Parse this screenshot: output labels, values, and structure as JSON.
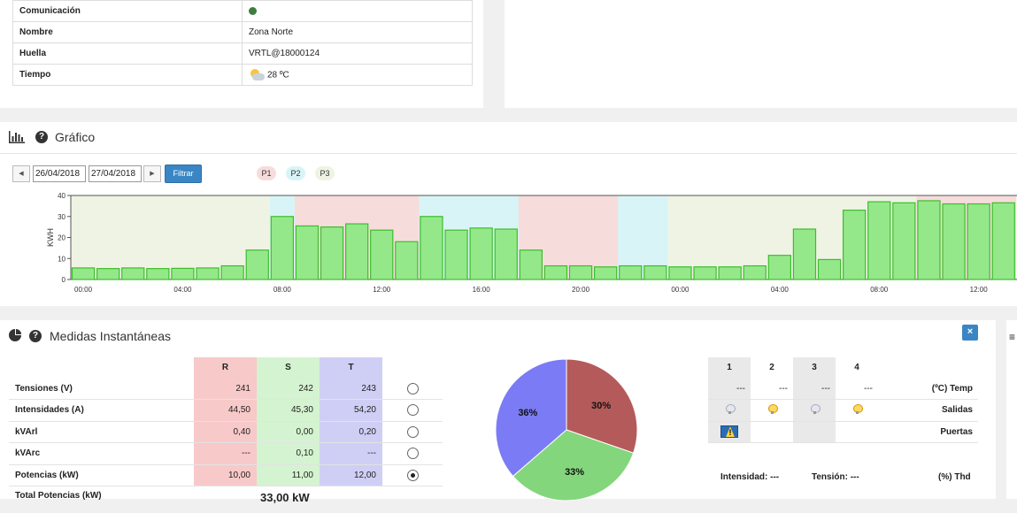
{
  "info": {
    "rows": [
      {
        "label": "Comunicación",
        "value": ""
      },
      {
        "label": "Nombre",
        "value": "Zona Norte"
      },
      {
        "label": "Huella",
        "value": "VRTL@18000124"
      },
      {
        "label": "Tiempo",
        "value": "28 ºC"
      }
    ],
    "status_color": "#3e7d3e"
  },
  "chart_section": {
    "title": "Gráfico",
    "date_from": "26/04/2018",
    "date_to": "27/04/2018",
    "filter_label": "Filtrar",
    "periods": [
      {
        "label": "P1",
        "color": "#f7dcdc"
      },
      {
        "label": "P2",
        "color": "#d9f4f6"
      },
      {
        "label": "P3",
        "color": "#eef3e4"
      }
    ]
  },
  "chart_data": {
    "type": "bar",
    "ylabel": "KWH",
    "ylim": [
      0,
      40
    ],
    "yticks": [
      0,
      10,
      20,
      30,
      40
    ],
    "xtick_labels": [
      "00:00",
      "04:00",
      "08:00",
      "12:00",
      "16:00",
      "20:00",
      "00:00",
      "04:00",
      "08:00",
      "12:00"
    ],
    "hours": [
      0,
      1,
      2,
      3,
      4,
      5,
      6,
      7,
      8,
      9,
      10,
      11,
      12,
      13,
      14,
      15,
      16,
      17,
      18,
      19,
      20,
      21,
      22,
      23,
      0,
      1,
      2,
      3,
      4,
      5,
      6,
      7,
      8,
      9,
      10,
      11,
      12,
      13
    ],
    "values": [
      5.5,
      5.2,
      5.5,
      5.2,
      5.3,
      5.5,
      6.5,
      14,
      30,
      25.5,
      25,
      26.5,
      23.5,
      18,
      30,
      23.5,
      24.5,
      24,
      14,
      6.5,
      6.5,
      6,
      6.5,
      6.5,
      6,
      6,
      6,
      6.5,
      11.5,
      24,
      9.5,
      33,
      37,
      36.5,
      37.5,
      36,
      36,
      36.5
    ],
    "period_by_bar": [
      "P3",
      "P3",
      "P3",
      "P3",
      "P3",
      "P3",
      "P3",
      "P3",
      "P2",
      "P1",
      "P1",
      "P1",
      "P1",
      "P1",
      "P2",
      "P2",
      "P2",
      "P2",
      "P1",
      "P1",
      "P1",
      "P1",
      "P2",
      "P2",
      "P3",
      "P3",
      "P3",
      "P3",
      "P3",
      "P3",
      "P3",
      "P3",
      "P3",
      "P3",
      "P1",
      "P1",
      "P1",
      "P1"
    ],
    "bar_color": "#94e88a",
    "bar_edge": "#3dbe2c"
  },
  "medidas": {
    "title": "Medidas Instantáneas",
    "close_label": "×",
    "phases": [
      "R",
      "S",
      "T"
    ],
    "rows": [
      {
        "label": "Tensiones (V)",
        "values": [
          "241",
          "242",
          "243"
        ],
        "selected": false
      },
      {
        "label": "Intensidades (A)",
        "values": [
          "44,50",
          "45,30",
          "54,20"
        ],
        "selected": false
      },
      {
        "label": "kVArl",
        "values": [
          "0,40",
          "0,00",
          "0,20"
        ],
        "selected": false
      },
      {
        "label": "kVArc",
        "values": [
          "---",
          "0,10",
          "---"
        ],
        "selected": false
      },
      {
        "label": "Potencias (kW)",
        "values": [
          "10,00",
          "11,00",
          "12,00"
        ],
        "selected": true
      }
    ],
    "total_label": "Total Potencias (kW)",
    "total_value": "33,00 kW"
  },
  "pie_data": {
    "type": "pie",
    "slices": [
      {
        "label": "30%",
        "value": 30,
        "color": "#b55a5a"
      },
      {
        "label": "33%",
        "value": 33,
        "color": "#84d67d"
      },
      {
        "label": "36%",
        "value": 36,
        "color": "#7b7bf5"
      }
    ]
  },
  "io": {
    "channels": [
      "1",
      "2",
      "3",
      "4"
    ],
    "temp_values": [
      "---",
      "---",
      "---",
      "---"
    ],
    "temp_label": "(ºC) Temp",
    "outputs": [
      "off",
      "on",
      "off",
      "on"
    ],
    "outputs_label": "Salidas",
    "doors_label": "Puertas",
    "intensidad_label": "Intensidad: ---",
    "tension_label": "Tensión: ---",
    "thd_label": "(%) Thd"
  }
}
